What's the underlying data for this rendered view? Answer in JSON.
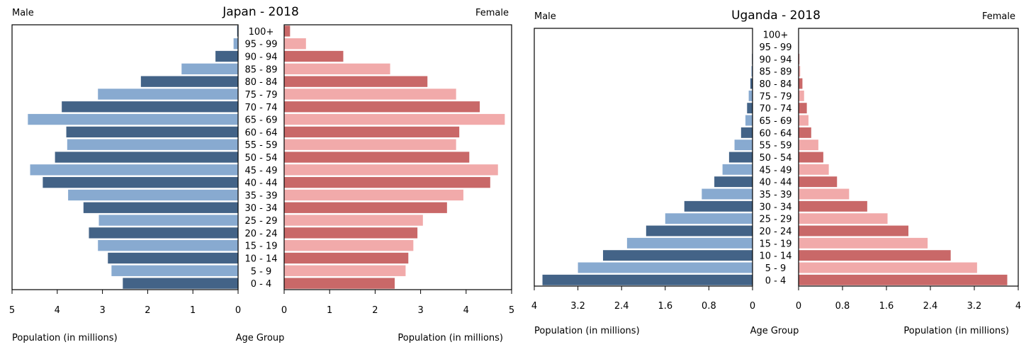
{
  "age_groups": [
    "0 - 4",
    "5 - 9",
    "10 - 14",
    "15 - 19",
    "20 - 24",
    "25 - 29",
    "30 - 34",
    "35 - 39",
    "40 - 44",
    "45 - 49",
    "50 - 54",
    "55 - 59",
    "60 - 64",
    "65 - 69",
    "70 - 74",
    "75 - 79",
    "80 - 84",
    "85 - 89",
    "90 - 94",
    "95 - 99",
    "100+"
  ],
  "colors": {
    "male_dark": "#436387",
    "male_light": "#88aad0",
    "female_dark": "#c96868",
    "female_light": "#f1aaaa",
    "axis": "#000000"
  },
  "chart_data": [
    {
      "type": "bar",
      "title": "Japan - 2018",
      "male_label": "Male",
      "female_label": "Female",
      "xlabel_left": "Population (in millions)",
      "xlabel_center": "Age Group",
      "xlabel_right": "Population (in millions)",
      "xlim": [
        0,
        5
      ],
      "ticks": [
        0,
        1,
        2,
        3,
        4,
        5
      ],
      "tick_labels": [
        "0",
        "1",
        "2",
        "3",
        "4",
        "5"
      ],
      "categories": [
        "0 - 4",
        "5 - 9",
        "10 - 14",
        "15 - 19",
        "20 - 24",
        "25 - 29",
        "30 - 34",
        "35 - 39",
        "40 - 44",
        "45 - 49",
        "50 - 54",
        "55 - 59",
        "60 - 64",
        "65 - 69",
        "70 - 74",
        "75 - 79",
        "80 - 84",
        "85 - 89",
        "90 - 94",
        "95 - 99",
        "100+"
      ],
      "series": [
        {
          "name": "Male",
          "values": [
            2.55,
            2.8,
            2.88,
            3.1,
            3.3,
            3.08,
            3.42,
            3.76,
            4.32,
            4.6,
            4.05,
            3.78,
            3.8,
            4.65,
            3.9,
            3.1,
            2.15,
            1.25,
            0.5,
            0.1,
            0.02
          ]
        },
        {
          "name": "Female",
          "values": [
            2.43,
            2.67,
            2.73,
            2.84,
            2.93,
            3.05,
            3.58,
            3.94,
            4.53,
            4.7,
            4.07,
            3.78,
            3.85,
            4.85,
            4.3,
            3.78,
            3.15,
            2.33,
            1.3,
            0.48,
            0.13
          ]
        }
      ]
    },
    {
      "type": "bar",
      "title": "Uganda - 2018",
      "male_label": "Male",
      "female_label": "Female",
      "xlabel_left": "Population (in millions)",
      "xlabel_center": "Age Group",
      "xlabel_right": "Population (in millions)",
      "xlim": [
        0,
        4
      ],
      "ticks": [
        0,
        0.8,
        1.6,
        2.4,
        3.2,
        4
      ],
      "tick_labels": [
        "0",
        "0.8",
        "1.6",
        "2.4",
        "3.2",
        "4"
      ],
      "categories": [
        "0 - 4",
        "5 - 9",
        "10 - 14",
        "15 - 19",
        "20 - 24",
        "25 - 29",
        "30 - 34",
        "35 - 39",
        "40 - 44",
        "45 - 49",
        "50 - 54",
        "55 - 59",
        "60 - 64",
        "65 - 69",
        "70 - 74",
        "75 - 79",
        "80 - 84",
        "85 - 89",
        "90 - 94",
        "95 - 99",
        "100+"
      ],
      "series": [
        {
          "name": "Male",
          "values": [
            3.85,
            3.2,
            2.74,
            2.3,
            1.95,
            1.6,
            1.25,
            0.93,
            0.7,
            0.55,
            0.43,
            0.33,
            0.21,
            0.13,
            0.1,
            0.07,
            0.04,
            0.02,
            0.01,
            0.005,
            0.002
          ]
        },
        {
          "name": "Female",
          "values": [
            3.8,
            3.25,
            2.77,
            2.35,
            2.0,
            1.62,
            1.25,
            0.92,
            0.7,
            0.55,
            0.45,
            0.36,
            0.23,
            0.18,
            0.15,
            0.1,
            0.07,
            0.03,
            0.015,
            0.008,
            0.003
          ]
        }
      ]
    }
  ]
}
